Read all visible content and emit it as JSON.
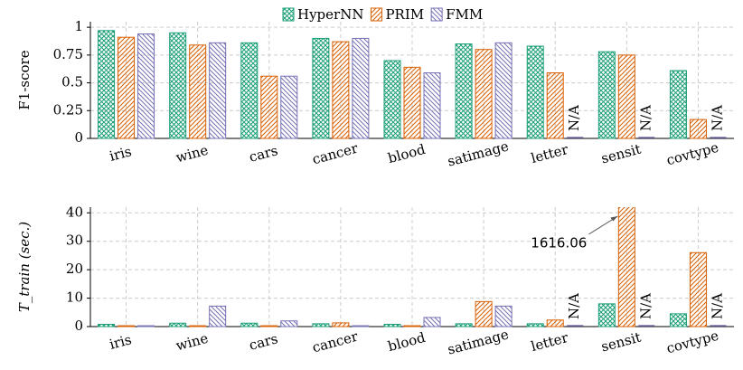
{
  "chart_data": [
    {
      "type": "bar",
      "ylabel": "F1-score",
      "legend": true,
      "grid": true,
      "categories": [
        "iris",
        "wine",
        "cars",
        "cancer",
        "blood",
        "satimage",
        "letter",
        "sensit",
        "covtype"
      ],
      "ylim": [
        0,
        1.05
      ],
      "yticks": [
        0,
        0.25,
        0.5,
        0.75,
        1
      ],
      "series": [
        {
          "name": "HyperNN",
          "color": "#1b9e77",
          "pattern": "crosshatch",
          "values": [
            0.97,
            0.95,
            0.86,
            0.9,
            0.7,
            0.85,
            0.83,
            0.78,
            0.61
          ]
        },
        {
          "name": "PRIM",
          "color": "#d95f02",
          "pattern": "north-east-lines",
          "values": [
            0.91,
            0.84,
            0.56,
            0.87,
            0.64,
            0.8,
            0.59,
            0.75,
            0.17
          ]
        },
        {
          "name": "FMM",
          "color": "#7570b3",
          "pattern": "north-west-lines",
          "values": [
            0.94,
            0.86,
            0.56,
            0.9,
            0.59,
            0.86,
            null,
            null,
            null
          ],
          "value_labels": [
            null,
            null,
            null,
            null,
            null,
            null,
            "N/A",
            "N/A",
            "N/A"
          ]
        }
      ]
    },
    {
      "type": "bar",
      "ylabel": "T_train (sec.)",
      "legend": false,
      "grid": true,
      "categories": [
        "iris",
        "wine",
        "cars",
        "cancer",
        "blood",
        "satimage",
        "letter",
        "sensit",
        "covtype"
      ],
      "ylim": [
        0,
        42
      ],
      "yticks": [
        0,
        10,
        20,
        30,
        40
      ],
      "series": [
        {
          "color": "#1b9e77",
          "pattern": "crosshatch",
          "values": [
            0.8,
            1.2,
            1.2,
            1.0,
            0.8,
            1.0,
            1.0,
            8,
            4.5
          ]
        },
        {
          "color": "#d95f02",
          "pattern": "north-east-lines",
          "values": [
            0.3,
            0.3,
            0.3,
            1.3,
            0.3,
            8.8,
            2.3,
            1616.06,
            26
          ],
          "value_labels": [
            null,
            null,
            null,
            null,
            null,
            null,
            null,
            "1616.06",
            null
          ]
        },
        {
          "color": "#7570b3",
          "pattern": "north-west-lines",
          "values": [
            0.3,
            7.2,
            2,
            0.3,
            3.2,
            7.2,
            null,
            null,
            null
          ],
          "value_labels": [
            null,
            null,
            null,
            null,
            null,
            null,
            "N/A",
            "N/A",
            "N/A"
          ]
        }
      ]
    }
  ]
}
